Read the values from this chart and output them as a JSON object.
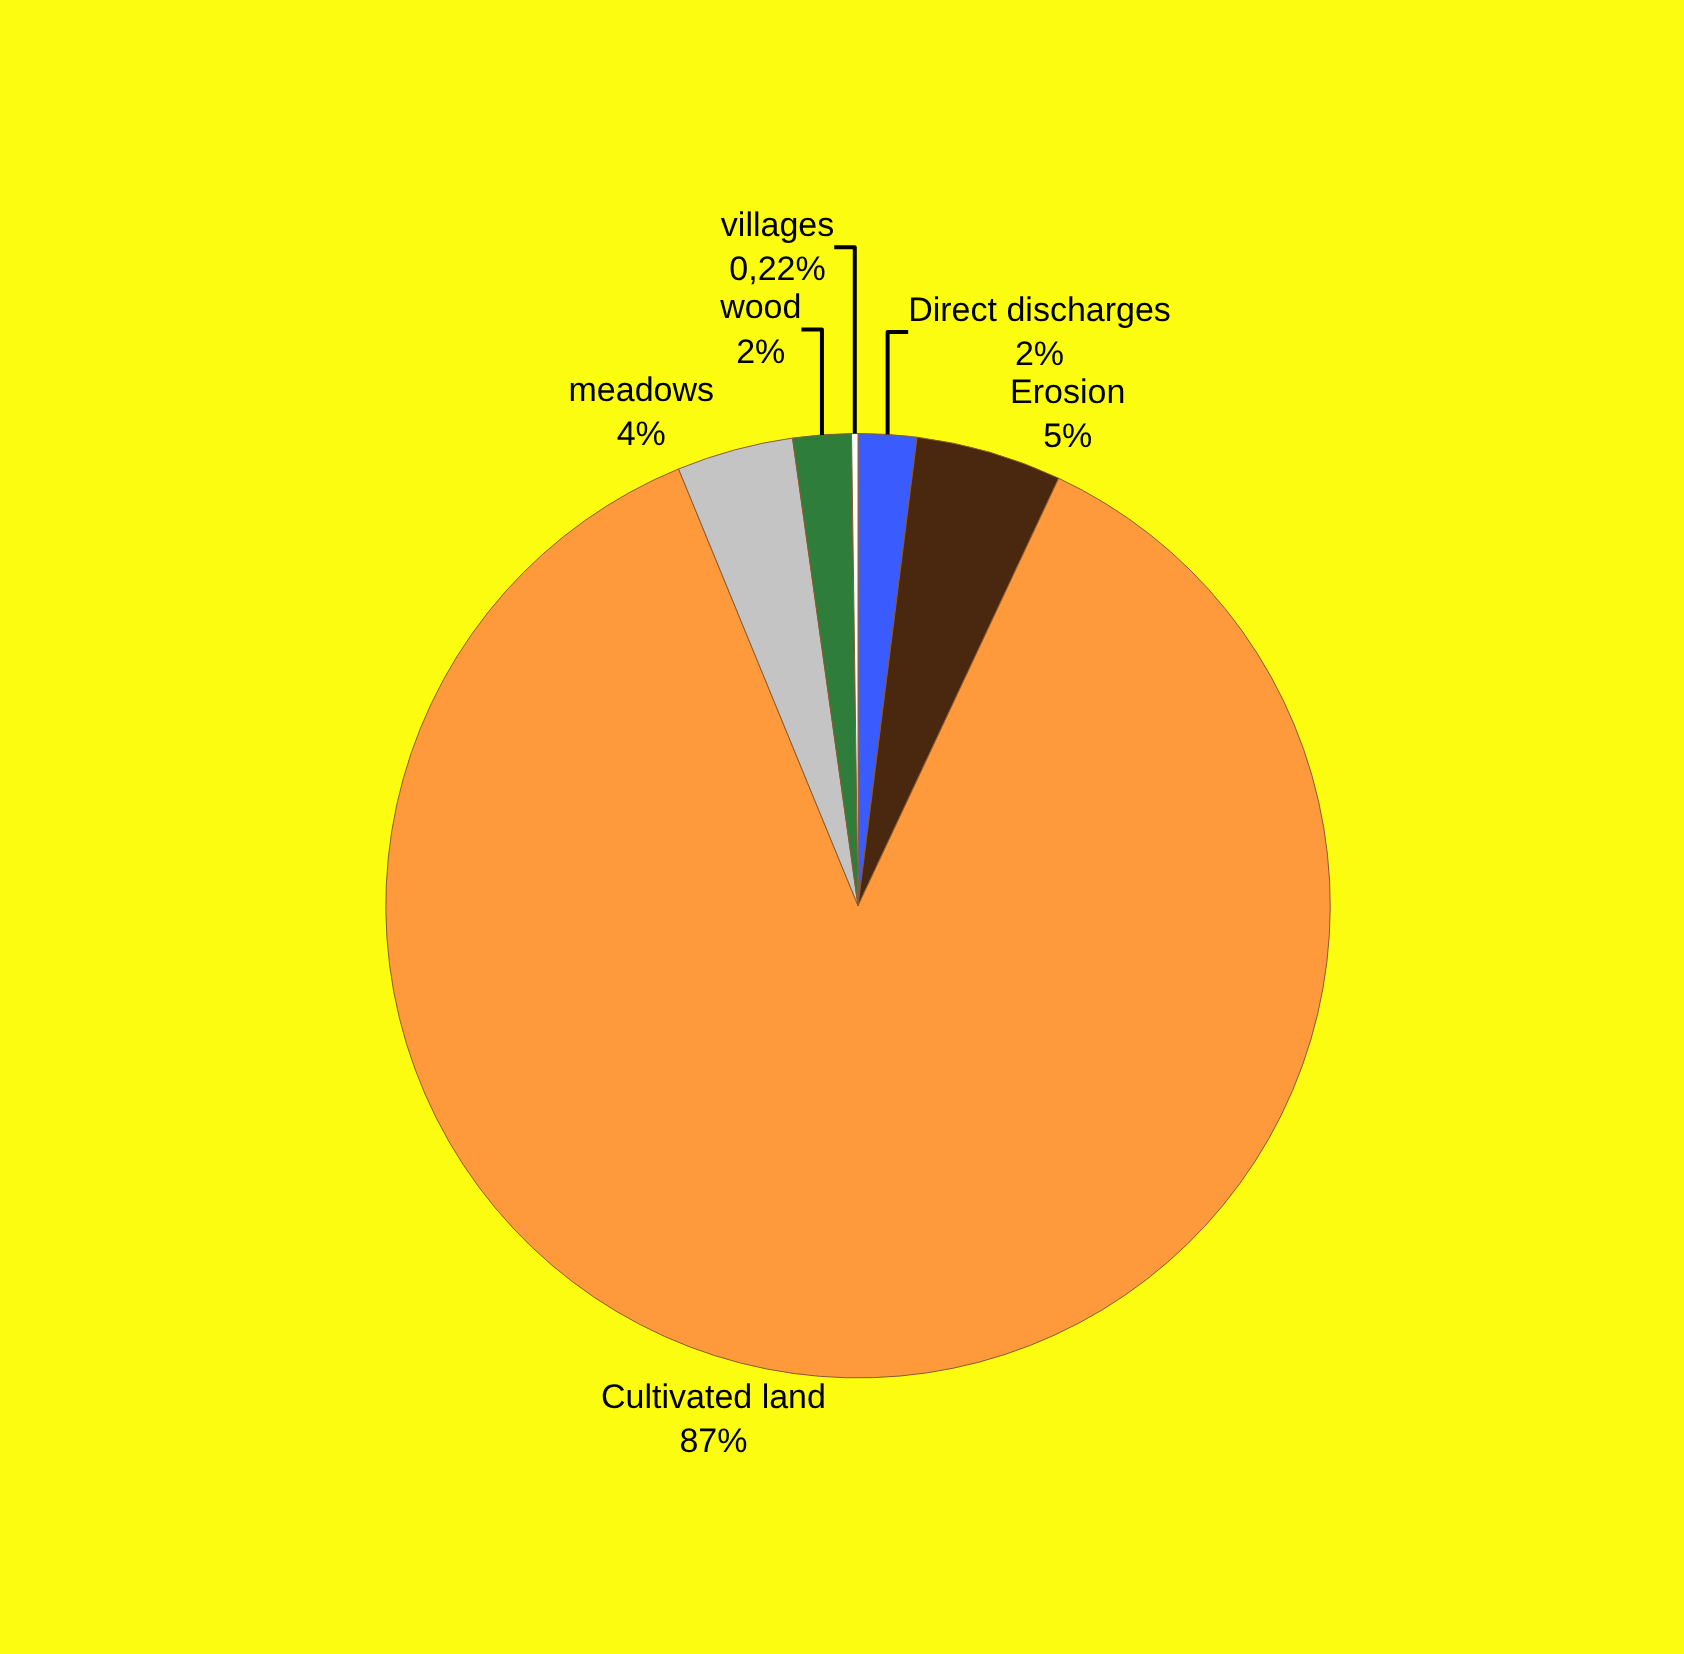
{
  "chart_data": {
    "type": "pie",
    "categories": [
      "Direct discharges",
      "Erosion",
      "Cultivated land",
      "meadows",
      "wood",
      "villages"
    ],
    "values": [
      2,
      5,
      87,
      4,
      2,
      0.22
    ],
    "value_labels": [
      "2%",
      "5%",
      "87%",
      "4%",
      "2%",
      "0,22%"
    ],
    "colors": [
      "#3a5cff",
      "#4a2810",
      "#ff9a3c",
      "#c4c4c4",
      "#2f7d3a",
      "#ffffff"
    ],
    "legend": false
  }
}
